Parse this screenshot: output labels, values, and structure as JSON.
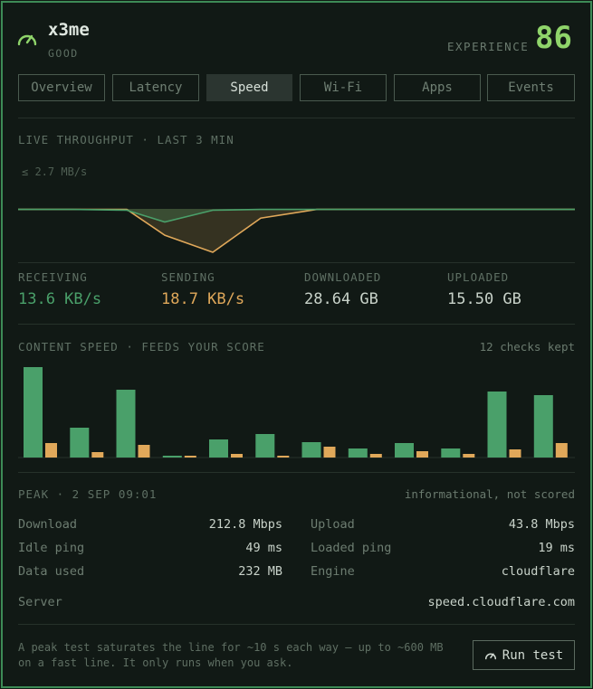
{
  "header": {
    "name": "x3me",
    "status": "GOOD",
    "experience_label": "EXPERIENCE",
    "experience_score": "86",
    "gauge_icon": "speedometer-icon"
  },
  "tabs": [
    {
      "label": "Overview",
      "active": false
    },
    {
      "label": "Latency",
      "active": false
    },
    {
      "label": "Speed",
      "active": true
    },
    {
      "label": "Wi-Fi",
      "active": false
    },
    {
      "label": "Apps",
      "active": false
    },
    {
      "label": "Events",
      "active": false
    }
  ],
  "throughput": {
    "title": "LIVE THROUGHPUT · LAST 3 MIN",
    "scale_label": "≤ 2.7 MB/s"
  },
  "stats": [
    {
      "label": "RECEIVING",
      "value": "13.6 KB/s",
      "color": "#4aa06a"
    },
    {
      "label": "SENDING",
      "value": "18.7 KB/s",
      "color": "#e0a85a"
    },
    {
      "label": "DOWNLOADED",
      "value": "28.64 GB",
      "color": "#c8d2c9"
    },
    {
      "label": "UPLOADED",
      "value": "15.50 GB",
      "color": "#c8d2c9"
    }
  ],
  "content_speed": {
    "title": "CONTENT SPEED · FEEDS YOUR SCORE",
    "checks": "12 checks kept"
  },
  "peak": {
    "title": "PEAK · 2 SEP 09:01",
    "note": "informational, not scored",
    "rows": [
      {
        "label": "Download",
        "value": "212.8 Mbps"
      },
      {
        "label": "Upload",
        "value": "43.8 Mbps"
      },
      {
        "label": "Idle ping",
        "value": "49 ms"
      },
      {
        "label": "Loaded ping",
        "value": "19 ms"
      },
      {
        "label": "Data used",
        "value": "232 MB"
      },
      {
        "label": "Engine",
        "value": "cloudflare"
      }
    ],
    "server_label": "Server",
    "server_value": "speed.cloudflare.com"
  },
  "footer": {
    "note_line1": "A peak test saturates the line for ~10 s each way — up to ~600 MB",
    "note_line2": "on a fast line. It only runs when you ask.",
    "button_label": "Run test",
    "button_icon": "speedometer-icon"
  },
  "chart_data": [
    {
      "type": "area",
      "title": "LIVE THROUGHPUT · LAST 3 MIN",
      "ylabel": "≤ 2.7 MB/s",
      "x": [
        0,
        10,
        20,
        30,
        40,
        50,
        60,
        70,
        80,
        90,
        100
      ],
      "series": [
        {
          "name": "RECEIVING",
          "values": [
            0.02,
            0.02,
            0.05,
            0.5,
            0.05,
            0.02,
            0.02,
            0.02,
            0.02,
            0.02,
            0.02
          ]
        },
        {
          "name": "SENDING",
          "values": [
            0.02,
            0.02,
            0.02,
            1.0,
            1.65,
            0.35,
            0.02,
            0.02,
            0.02,
            0.02,
            0.02
          ]
        }
      ]
    },
    {
      "type": "bar",
      "title": "CONTENT SPEED · FEEDS YOUR SCORE",
      "categories": [
        "1",
        "2",
        "3",
        "4",
        "5",
        "6",
        "7",
        "8",
        "9",
        "10",
        "11",
        "12"
      ],
      "series": [
        {
          "name": "download",
          "color": "#4aa06a",
          "values": [
            100,
            33,
            75,
            2,
            20,
            26,
            17,
            10,
            16,
            10,
            73,
            69
          ]
        },
        {
          "name": "upload",
          "color": "#e0a85a",
          "values": [
            16,
            6,
            14,
            2,
            4,
            2,
            12,
            4,
            7,
            4,
            9,
            16
          ]
        }
      ],
      "ylim": [
        0,
        100
      ]
    }
  ]
}
